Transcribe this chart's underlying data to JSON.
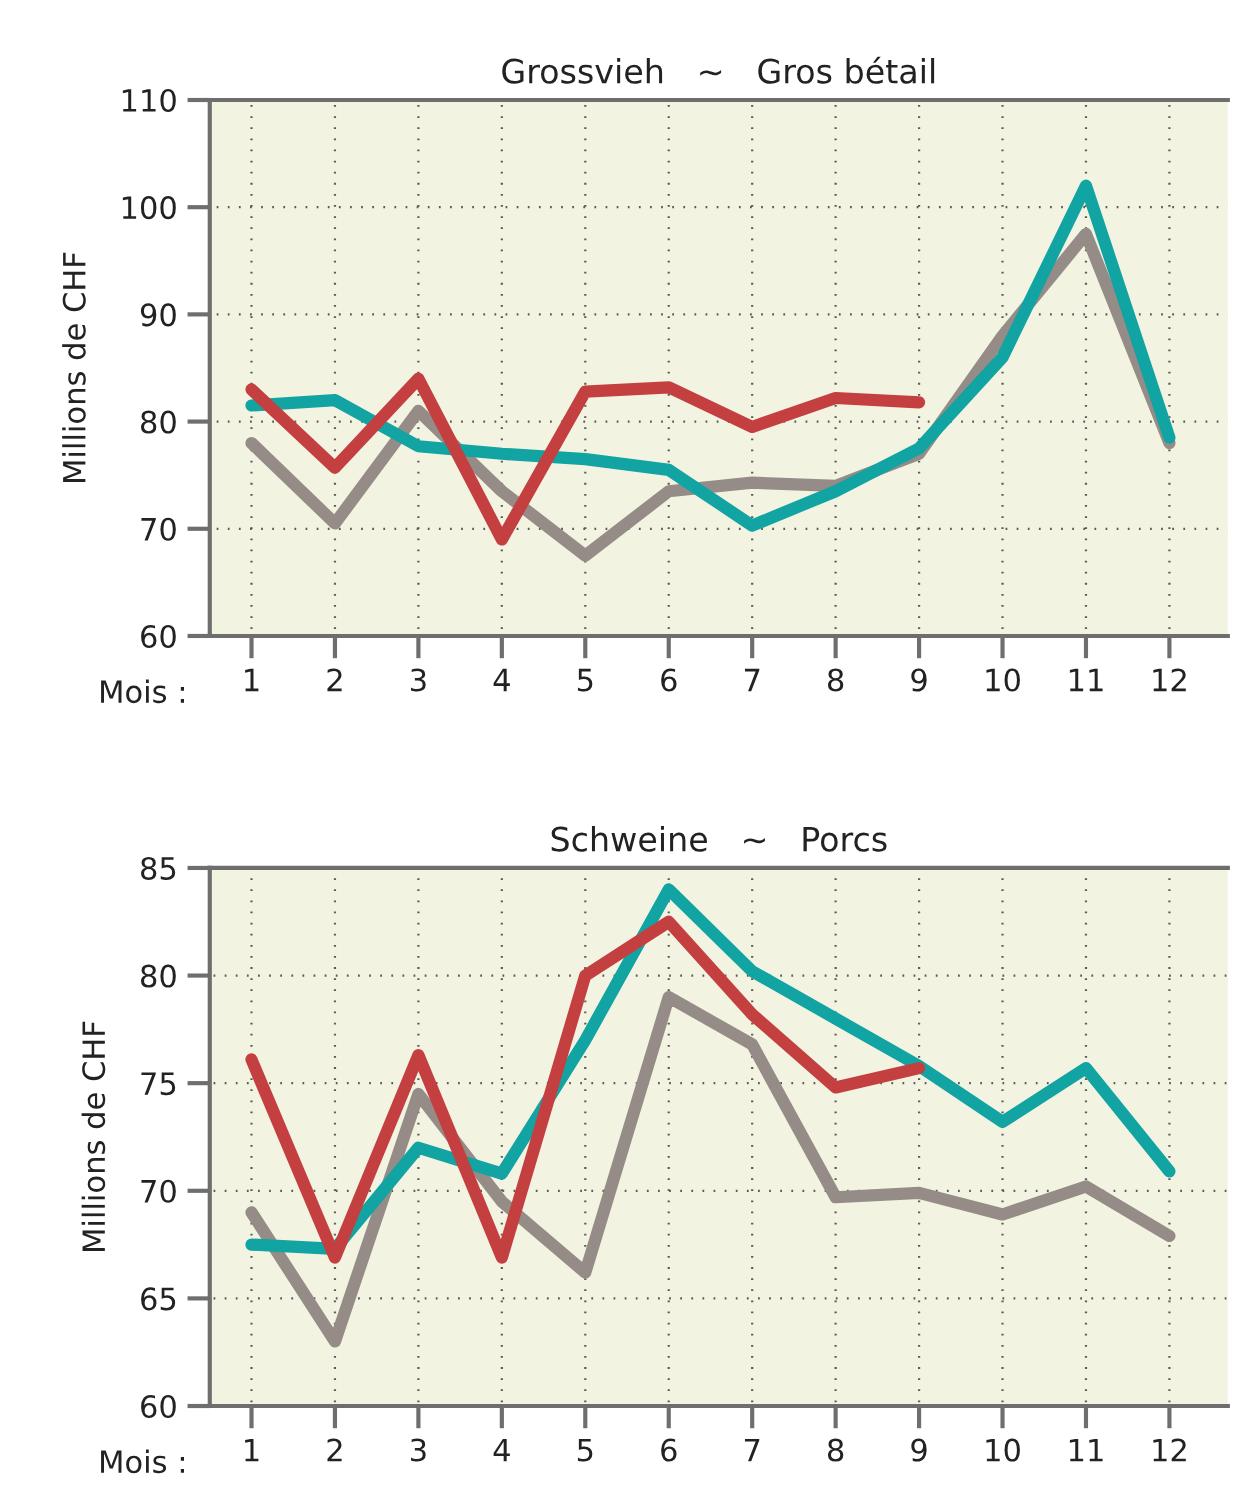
{
  "chart_data": [
    {
      "type": "line",
      "title": "Grossvieh   ~   Gros bétail",
      "ylabel": "Millions de CHF",
      "xlabel": "Mois :",
      "categories": [
        "1",
        "2",
        "3",
        "4",
        "5",
        "6",
        "7",
        "8",
        "9",
        "10",
        "11",
        "12"
      ],
      "series": [
        {
          "color": "#968c87",
          "values": [
            78,
            70.5,
            81,
            73.5,
            67.5,
            73.5,
            74.3,
            74,
            77,
            88,
            97.5,
            78
          ]
        },
        {
          "color": "#12a3a3",
          "values": [
            81.5,
            82,
            77.7,
            77,
            76.5,
            75.5,
            70.3,
            73.5,
            77.5,
            86,
            102,
            78.5
          ]
        },
        {
          "color": "#c44040",
          "values": [
            83,
            75.7,
            84,
            69,
            82.8,
            83.2,
            79.5,
            82.2,
            81.8,
            null,
            null,
            null
          ]
        }
      ],
      "ylim": [
        60,
        110
      ],
      "yticks": [
        60,
        70,
        80,
        90,
        100,
        110
      ],
      "grid": true,
      "line_style": "solid",
      "marker": "none"
    },
    {
      "type": "line",
      "title": "Schweine   ~   Porcs",
      "ylabel": "Millions de CHF",
      "xlabel": "Mois :",
      "categories": [
        "1",
        "2",
        "3",
        "4",
        "5",
        "6",
        "7",
        "8",
        "9",
        "10",
        "11",
        "12"
      ],
      "series": [
        {
          "color": "#968c87",
          "values": [
            69,
            63,
            74.5,
            69.5,
            66.2,
            79,
            76.8,
            69.7,
            69.9,
            68.9,
            70.2,
            67.9
          ]
        },
        {
          "color": "#12a3a3",
          "values": [
            67.5,
            67.3,
            72,
            70.8,
            77,
            84,
            80.2,
            78,
            75.8,
            73.2,
            75.7,
            70.9
          ]
        },
        {
          "color": "#c44040",
          "values": [
            76.1,
            66.9,
            76.3,
            66.9,
            80,
            82.5,
            78.2,
            74.8,
            75.7,
            null,
            null,
            null
          ]
        }
      ],
      "ylim": [
        60,
        85
      ],
      "yticks": [
        60,
        65,
        70,
        75,
        80,
        85
      ],
      "grid": true,
      "line_style": "solid",
      "marker": "none"
    }
  ]
}
